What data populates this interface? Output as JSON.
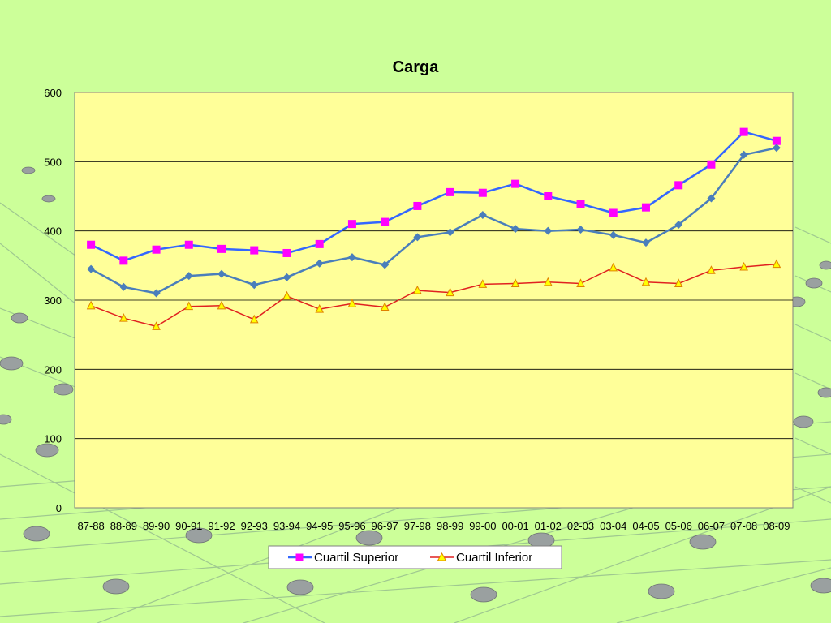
{
  "colors": {
    "background": "#ccff99",
    "plot_area": "#ffff99",
    "gridline": "#000000",
    "mesh_node": "#9aa0a0"
  },
  "chart_data": {
    "type": "line",
    "title": "Carga",
    "xlabel": "",
    "ylabel": "",
    "ylim": [
      0,
      600
    ],
    "yticks": [
      0,
      100,
      200,
      300,
      400,
      500,
      600
    ],
    "grid": true,
    "legend_position": "bottom",
    "categories": [
      "87-88",
      "88-89",
      "89-90",
      "90-91",
      "91-92",
      "92-93",
      "93-94",
      "94-95",
      "95-96",
      "96-97",
      "97-98",
      "98-99",
      "99-00",
      "00-01",
      "01-02",
      "02-03",
      "03-04",
      "04-05",
      "05-06",
      "06-07",
      "07-08",
      "08-09"
    ],
    "series": [
      {
        "name": "Cuartil Superior",
        "in_legend": true,
        "color": "#3366ff",
        "marker": "square",
        "marker_color": "#ff00ff",
        "values": [
          380,
          357,
          373,
          380,
          374,
          372,
          368,
          381,
          410,
          413,
          436,
          456,
          455,
          468,
          450,
          439,
          426,
          434,
          466,
          496,
          543,
          530
        ]
      },
      {
        "name": "",
        "in_legend": false,
        "color": "#4a7ebb",
        "marker": "diamond",
        "marker_color": "#4a7ebb",
        "values": [
          345,
          319,
          310,
          335,
          338,
          322,
          333,
          353,
          362,
          351,
          391,
          398,
          423,
          403,
          400,
          402,
          394,
          383,
          409,
          447,
          510,
          520
        ]
      },
      {
        "name": "Cuartil Inferior",
        "in_legend": true,
        "color": "#e02020",
        "marker": "triangle",
        "marker_color": "#ffff00",
        "marker_stroke": "#e08000",
        "values": [
          292,
          274,
          262,
          291,
          292,
          272,
          306,
          287,
          295,
          290,
          314,
          311,
          323,
          324,
          326,
          324,
          347,
          326,
          324,
          343,
          348,
          352
        ]
      }
    ]
  }
}
